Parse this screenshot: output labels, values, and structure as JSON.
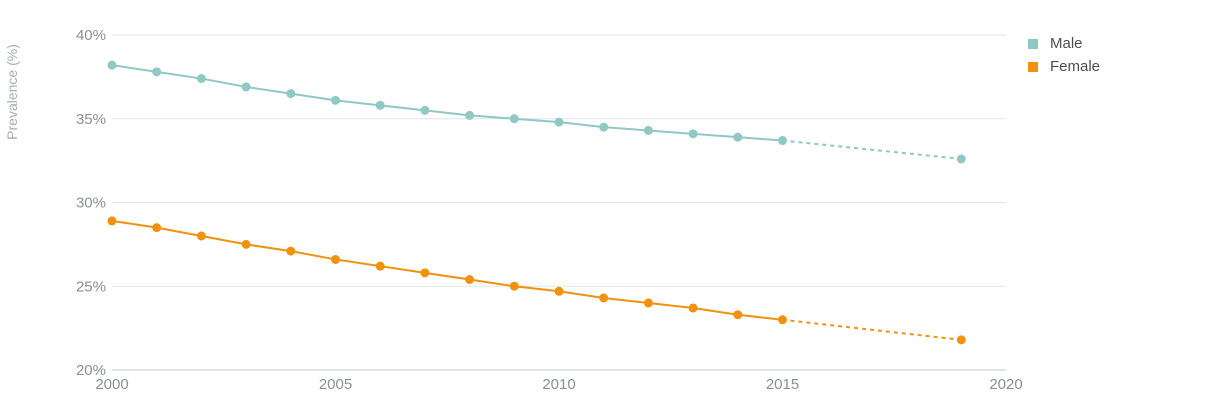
{
  "colors": {
    "male": "#8fc8c5",
    "female": "#f0920f",
    "grid": "#dde7ea",
    "axis": "#c5ced3"
  },
  "chart_data": {
    "type": "line",
    "ylabel": "Prevalence (%)",
    "xlabel": "",
    "xlim": [
      2000,
      2020
    ],
    "ylim": [
      20,
      40
    ],
    "x_ticks": [
      2000,
      2005,
      2010,
      2015,
      2020
    ],
    "y_ticks": [
      "20%",
      "25%",
      "30%",
      "35%",
      "40%"
    ],
    "y_tick_values": [
      20,
      25,
      30,
      35,
      40
    ],
    "legend_position": "top-right",
    "grid": true,
    "series": [
      {
        "name": "Male",
        "color": "#8fc8c5",
        "x": [
          2000,
          2001,
          2002,
          2003,
          2004,
          2005,
          2006,
          2007,
          2008,
          2009,
          2010,
          2011,
          2012,
          2013,
          2014,
          2015,
          2019
        ],
        "values": [
          38.2,
          37.8,
          37.4,
          36.9,
          36.5,
          36.1,
          35.8,
          35.5,
          35.2,
          35.0,
          34.8,
          34.5,
          34.3,
          34.1,
          33.9,
          33.7,
          32.6
        ],
        "dashed_from_x": 2015
      },
      {
        "name": "Female",
        "color": "#f0920f",
        "x": [
          2000,
          2001,
          2002,
          2003,
          2004,
          2005,
          2006,
          2007,
          2008,
          2009,
          2010,
          2011,
          2012,
          2013,
          2014,
          2015,
          2019
        ],
        "values": [
          28.9,
          28.5,
          28.0,
          27.5,
          27.1,
          26.6,
          26.2,
          25.8,
          25.4,
          25.0,
          24.7,
          24.3,
          24.0,
          23.7,
          23.3,
          23.0,
          21.8
        ],
        "dashed_from_x": 2015
      }
    ]
  }
}
